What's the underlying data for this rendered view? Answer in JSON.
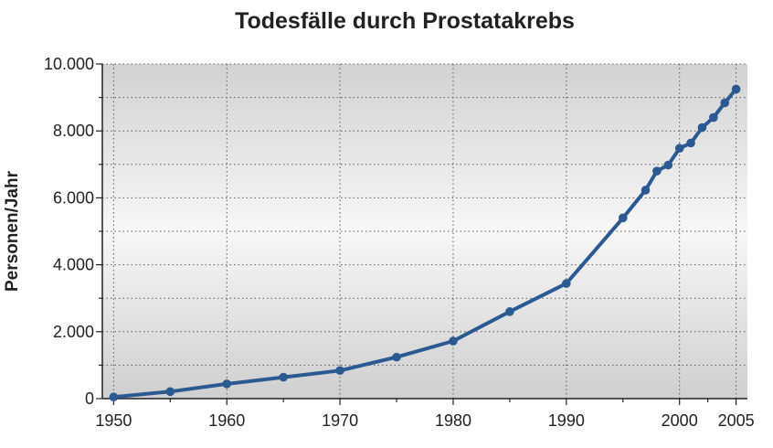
{
  "chart_data": {
    "type": "line",
    "title": "Todesfälle durch Prostatakrebs",
    "xlabel": "",
    "ylabel": "Personen/Jahr",
    "xlim": [
      1949,
      2006
    ],
    "ylim": [
      0,
      10000
    ],
    "x_ticks": [
      {
        "value": 1950,
        "label": "1950"
      },
      {
        "value": 1960,
        "label": "1960"
      },
      {
        "value": 1970,
        "label": "1970"
      },
      {
        "value": 1980,
        "label": "1980"
      },
      {
        "value": 1990,
        "label": "1990"
      },
      {
        "value": 2000,
        "label": "2000"
      },
      {
        "value": 2005,
        "label": "2005"
      }
    ],
    "x_minor_ticks": [
      1955,
      1965,
      1975,
      1985,
      1995,
      2002.5
    ],
    "y_ticks": [
      {
        "value": 0,
        "label": "0"
      },
      {
        "value": 2000,
        "label": "2.000"
      },
      {
        "value": 4000,
        "label": "4.000"
      },
      {
        "value": 6000,
        "label": "6.000"
      },
      {
        "value": 8000,
        "label": "8.000"
      },
      {
        "value": 10000,
        "label": "10.000"
      }
    ],
    "y_minor_ticks": [
      1000,
      3000,
      5000,
      7000,
      9000
    ],
    "grid": true,
    "series": [
      {
        "name": "",
        "color": "#2b5a92",
        "points": [
          {
            "x": 1950,
            "y": 50
          },
          {
            "x": 1955,
            "y": 210
          },
          {
            "x": 1960,
            "y": 440
          },
          {
            "x": 1965,
            "y": 640
          },
          {
            "x": 1970,
            "y": 840
          },
          {
            "x": 1975,
            "y": 1240
          },
          {
            "x": 1980,
            "y": 1720
          },
          {
            "x": 1985,
            "y": 2600
          },
          {
            "x": 1990,
            "y": 3440
          },
          {
            "x": 1995,
            "y": 5400
          },
          {
            "x": 1997,
            "y": 6230
          },
          {
            "x": 1998,
            "y": 6800
          },
          {
            "x": 1999,
            "y": 6980
          },
          {
            "x": 2000,
            "y": 7480
          },
          {
            "x": 2001,
            "y": 7640
          },
          {
            "x": 2002,
            "y": 8100
          },
          {
            "x": 2003,
            "y": 8400
          },
          {
            "x": 2004,
            "y": 8840
          },
          {
            "x": 2005,
            "y": 9250
          }
        ]
      }
    ]
  }
}
